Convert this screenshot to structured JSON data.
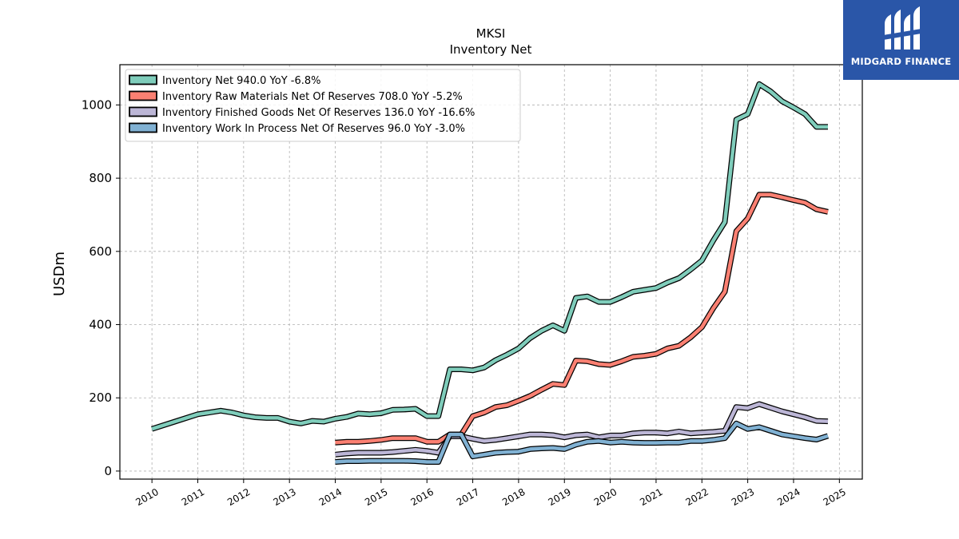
{
  "chart_data": {
    "type": "line",
    "title": "MKSI",
    "subtitle": "Inventory Net",
    "xlabel": "",
    "ylabel": "USDm",
    "xlim": [
      2009.3,
      2025.5
    ],
    "ylim": [
      -22,
      1110
    ],
    "x_ticks": [
      2010,
      2011,
      2012,
      2013,
      2014,
      2015,
      2016,
      2017,
      2018,
      2019,
      2020,
      2021,
      2022,
      2023,
      2024,
      2025
    ],
    "x_tick_labels": [
      "2010",
      "2011",
      "2012",
      "2013",
      "2014",
      "2015",
      "2016",
      "2017",
      "2018",
      "2019",
      "2020",
      "2021",
      "2022",
      "2023",
      "2024",
      "2025"
    ],
    "y_ticks": [
      0,
      200,
      400,
      600,
      800,
      1000
    ],
    "y_tick_labels": [
      "0",
      "200",
      "400",
      "600",
      "800",
      "1000"
    ],
    "grid": true,
    "legend_position": "top-left",
    "series": [
      {
        "name": "Inventory Net",
        "legend_label": "Inventory Net  940.0 YoY -6.8%",
        "color": "#7fcdbb",
        "x": [
          2010.0,
          2010.5,
          2011.0,
          2011.25,
          2011.5,
          2011.75,
          2012.0,
          2012.25,
          2012.5,
          2012.75,
          2013.0,
          2013.25,
          2013.5,
          2013.75,
          2014.0,
          2014.25,
          2014.5,
          2014.75,
          2015.0,
          2015.25,
          2015.5,
          2015.75,
          2016.0,
          2016.25,
          2016.5,
          2016.75,
          2017.0,
          2017.25,
          2017.5,
          2017.75,
          2018.0,
          2018.25,
          2018.5,
          2018.75,
          2019.0,
          2019.25,
          2019.5,
          2019.75,
          2020.0,
          2020.25,
          2020.5,
          2020.75,
          2021.0,
          2021.25,
          2021.5,
          2021.75,
          2022.0,
          2022.25,
          2022.5,
          2022.75,
          2023.0,
          2023.25,
          2023.5,
          2023.75,
          2024.0,
          2024.25,
          2024.5,
          2024.75
        ],
        "values": [
          115,
          135,
          155,
          160,
          165,
          160,
          152,
          147,
          145,
          145,
          135,
          130,
          137,
          135,
          143,
          148,
          157,
          155,
          158,
          167,
          168,
          170,
          150,
          150,
          278,
          278,
          275,
          283,
          303,
          318,
          335,
          363,
          383,
          398,
          383,
          473,
          477,
          462,
          462,
          475,
          490,
          495,
          500,
          515,
          527,
          550,
          575,
          630,
          680,
          960,
          975,
          1057,
          1037,
          1010,
          993,
          975,
          940,
          940
        ]
      },
      {
        "name": "Inventory Raw Materials Net Of Reserves",
        "legend_label": "Inventory Raw Materials Net Of Reserves  708.0 YoY -5.2%",
        "color": "#fb8072",
        "x": [
          2014.0,
          2014.25,
          2014.5,
          2014.75,
          2015.0,
          2015.25,
          2015.5,
          2015.75,
          2016.0,
          2016.25,
          2016.5,
          2016.75,
          2017.0,
          2017.25,
          2017.5,
          2017.75,
          2018.0,
          2018.25,
          2018.5,
          2018.75,
          2019.0,
          2019.25,
          2019.5,
          2019.75,
          2020.0,
          2020.25,
          2020.5,
          2020.75,
          2021.0,
          2021.25,
          2021.5,
          2021.75,
          2022.0,
          2022.25,
          2022.5,
          2022.75,
          2023.0,
          2023.25,
          2023.5,
          2023.75,
          2024.0,
          2024.25,
          2024.5,
          2024.75
        ],
        "values": [
          78,
          80,
          80,
          82,
          85,
          90,
          90,
          90,
          80,
          80,
          100,
          100,
          150,
          160,
          175,
          180,
          192,
          205,
          222,
          238,
          235,
          302,
          300,
          292,
          290,
          300,
          312,
          315,
          320,
          335,
          342,
          365,
          393,
          445,
          490,
          655,
          690,
          755,
          755,
          748,
          740,
          733,
          715,
          708
        ]
      },
      {
        "name": "Inventory Finished Goods Net Of Reserves",
        "legend_label": "Inventory Finished Goods Net Of Reserves  136.0 YoY -16.6%",
        "color": "#bcb6d6",
        "x": [
          2014.0,
          2014.25,
          2014.5,
          2014.75,
          2015.0,
          2015.25,
          2015.5,
          2015.75,
          2016.0,
          2016.25,
          2016.5,
          2016.75,
          2017.0,
          2017.25,
          2017.5,
          2017.75,
          2018.0,
          2018.25,
          2018.5,
          2018.75,
          2019.0,
          2019.25,
          2019.5,
          2019.75,
          2020.0,
          2020.25,
          2020.5,
          2020.75,
          2021.0,
          2021.25,
          2021.5,
          2021.75,
          2022.0,
          2022.25,
          2022.5,
          2022.75,
          2023.0,
          2023.25,
          2023.5,
          2023.75,
          2024.0,
          2024.25,
          2024.5,
          2024.75
        ],
        "values": [
          45,
          48,
          50,
          50,
          50,
          52,
          55,
          58,
          55,
          50,
          95,
          95,
          88,
          82,
          85,
          90,
          95,
          100,
          100,
          98,
          92,
          98,
          100,
          92,
          97,
          97,
          103,
          105,
          105,
          103,
          108,
          103,
          105,
          107,
          110,
          175,
          172,
          183,
          173,
          163,
          155,
          147,
          137,
          136
        ]
      },
      {
        "name": "Inventory Work In Process Net Of Reserves",
        "legend_label": "Inventory Work In Process Net Of Reserves  96.0 YoY -3.0%",
        "color": "#80b1d3",
        "x": [
          2014.0,
          2014.25,
          2014.5,
          2014.75,
          2015.0,
          2015.25,
          2015.5,
          2015.75,
          2016.0,
          2016.25,
          2016.5,
          2016.75,
          2017.0,
          2017.25,
          2017.5,
          2017.75,
          2018.0,
          2018.25,
          2018.5,
          2018.75,
          2019.0,
          2019.25,
          2019.5,
          2019.75,
          2020.0,
          2020.25,
          2020.5,
          2020.75,
          2021.0,
          2021.25,
          2021.5,
          2021.75,
          2022.0,
          2022.25,
          2022.5,
          2022.75,
          2023.0,
          2023.25,
          2023.5,
          2023.75,
          2024.0,
          2024.25,
          2024.5,
          2024.75
        ],
        "values": [
          25,
          27,
          27,
          28,
          28,
          28,
          28,
          27,
          25,
          25,
          100,
          100,
          40,
          45,
          50,
          52,
          53,
          60,
          62,
          63,
          60,
          72,
          80,
          82,
          78,
          80,
          78,
          77,
          77,
          78,
          78,
          82,
          82,
          85,
          90,
          130,
          115,
          120,
          110,
          100,
          95,
          90,
          86,
          96
        ]
      }
    ]
  },
  "logo": {
    "text": "MIDGARD FINANCE",
    "color": "#2a56a8"
  }
}
